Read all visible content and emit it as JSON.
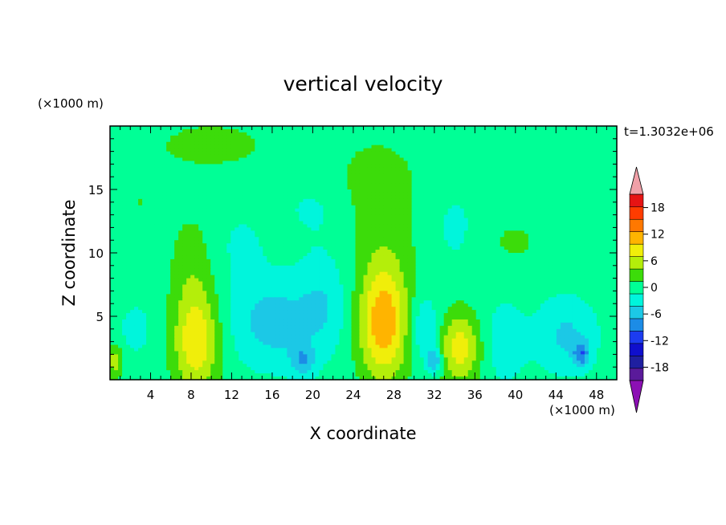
{
  "chart_data": {
    "type": "heatmap",
    "title": "vertical velocity",
    "time_label": "t=1.3032e+06",
    "xlabel": "X coordinate",
    "ylabel": "Z coordinate",
    "x_unit": "(×1000 m)",
    "y_unit": "(×1000 m)",
    "xlim": [
      0,
      50
    ],
    "ylim": [
      0,
      20
    ],
    "x_ticks": [
      4,
      8,
      12,
      16,
      20,
      24,
      28,
      32,
      36,
      40,
      44,
      48
    ],
    "y_ticks": [
      5,
      10,
      15
    ],
    "colorbar": {
      "levels": [
        -21,
        -18,
        -15,
        -12,
        -9,
        -6,
        -3,
        0,
        3,
        6,
        9,
        12,
        15,
        18,
        21
      ],
      "tick_values": [
        18,
        12,
        6,
        0,
        -6,
        -12,
        -18
      ],
      "extend": "both",
      "colors": [
        "#5a1a9a",
        "#1f1fa0",
        "#0f0fcd",
        "#1c3cf0",
        "#1c8ce6",
        "#1cc8e6",
        "#00f5dc",
        "#00ff96",
        "#3cdc0a",
        "#b4ee0a",
        "#f0ee0a",
        "#ffb400",
        "#ff7800",
        "#ff3c00",
        "#e61414"
      ],
      "under_color": "#8c10b4",
      "over_color": "#f0a0a8"
    },
    "background_value": 1.5,
    "features": [
      {
        "x": 8.5,
        "z": 3.0,
        "sx": 2.2,
        "sz": 4.0,
        "amp": 10
      },
      {
        "x": 27.0,
        "z": 4.5,
        "sx": 2.4,
        "sz": 4.5,
        "amp": 13
      },
      {
        "x": 34.5,
        "z": 2.5,
        "sx": 2.0,
        "sz": 2.8,
        "amp": 9
      },
      {
        "x": 0.5,
        "z": 1.5,
        "sx": 0.8,
        "sz": 1.3,
        "amp": 6
      },
      {
        "x": 8.0,
        "z": 9.0,
        "sx": 2.0,
        "sz": 4.0,
        "amp": 3
      },
      {
        "x": 27.0,
        "z": 12.0,
        "sx": 3.5,
        "sz": 5.0,
        "amp": 2.5
      },
      {
        "x": 10.0,
        "z": 18.5,
        "sx": 6.0,
        "sz": 2.0,
        "amp": 2.5
      },
      {
        "x": 26.0,
        "z": 16.0,
        "sx": 4.0,
        "sz": 3.0,
        "amp": 2.0
      },
      {
        "x": 40.0,
        "z": 11.0,
        "sx": 3.0,
        "sz": 2.0,
        "amp": 2.0
      },
      {
        "x": 48.0,
        "z": 15.0,
        "sx": 1.5,
        "sz": 3.0,
        "amp": 2.0
      },
      {
        "x": 3.0,
        "z": 14.0,
        "sx": 2.5,
        "sz": 3.0,
        "amp": 1.5
      },
      {
        "x": 16.0,
        "z": 4.5,
        "sx": 4.0,
        "sz": 3.5,
        "amp": -6
      },
      {
        "x": 19.0,
        "z": 1.5,
        "sx": 1.2,
        "sz": 1.2,
        "amp": -6
      },
      {
        "x": 21.0,
        "z": 6.0,
        "sx": 2.5,
        "sz": 4.0,
        "amp": -4
      },
      {
        "x": 31.0,
        "z": 4.0,
        "sx": 1.5,
        "sz": 2.5,
        "amp": -5
      },
      {
        "x": 32.0,
        "z": 1.5,
        "sx": 0.7,
        "sz": 1.0,
        "amp": -8
      },
      {
        "x": 45.0,
        "z": 3.5,
        "sx": 3.0,
        "sz": 3.0,
        "amp": -5
      },
      {
        "x": 46.5,
        "z": 2.0,
        "sx": 0.8,
        "sz": 1.0,
        "amp": -8
      },
      {
        "x": 39.0,
        "z": 3.0,
        "sx": 2.0,
        "sz": 3.0,
        "amp": -4
      },
      {
        "x": 13.0,
        "z": 10.5,
        "sx": 2.5,
        "sz": 3.0,
        "amp": -2
      },
      {
        "x": 34.0,
        "z": 12.0,
        "sx": 2.5,
        "sz": 3.5,
        "amp": -2
      },
      {
        "x": 20.0,
        "z": 13.5,
        "sx": 3.5,
        "sz": 2.5,
        "amp": -1.8
      },
      {
        "x": 44.0,
        "z": 14.5,
        "sx": 4.0,
        "sz": 2.5,
        "amp": -1.5
      },
      {
        "x": 2.5,
        "z": 4.0,
        "sx": 1.5,
        "sz": 2.0,
        "amp": -3
      }
    ]
  }
}
